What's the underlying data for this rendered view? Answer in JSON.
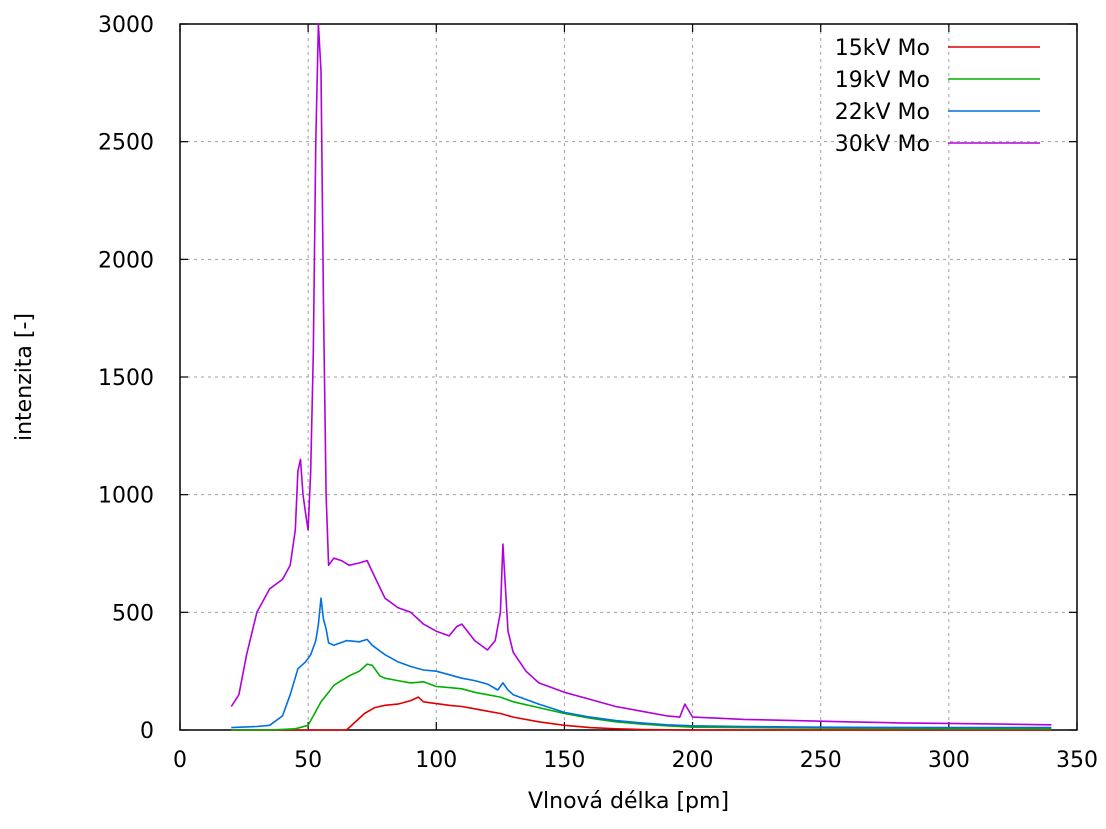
{
  "chart_data": {
    "type": "line",
    "title": "",
    "xlabel": "Vlnová délka [pm]",
    "ylabel": "intenzita [-]",
    "xlim": [
      0,
      350
    ],
    "ylim": [
      0,
      3000
    ],
    "xticks": [
      "0",
      "50",
      "100",
      "150",
      "200",
      "250",
      "300",
      "350"
    ],
    "yticks": [
      "0",
      "500",
      "1000",
      "1500",
      "2000",
      "2500",
      "3000"
    ],
    "grid": true,
    "legend_position": "top-right",
    "series": [
      {
        "name": "15kV Mo",
        "color": "#e00000",
        "x": [
          20,
          40,
          60,
          65,
          68,
          72,
          76,
          80,
          85,
          90,
          93,
          95,
          98,
          100,
          105,
          110,
          115,
          120,
          125,
          130,
          140,
          150,
          160,
          170,
          180,
          200,
          250,
          300,
          340
        ],
        "y": [
          0,
          0,
          0,
          0,
          30,
          70,
          95,
          105,
          110,
          125,
          140,
          120,
          115,
          112,
          105,
          100,
          90,
          80,
          70,
          55,
          35,
          20,
          10,
          5,
          2,
          0,
          0,
          0,
          0
        ]
      },
      {
        "name": "19kV Mo",
        "color": "#00b000",
        "x": [
          20,
          35,
          45,
          50,
          52,
          55,
          58,
          60,
          63,
          66,
          70,
          73,
          75,
          78,
          80,
          85,
          90,
          95,
          100,
          105,
          110,
          115,
          120,
          125,
          130,
          140,
          150,
          160,
          170,
          180,
          190,
          200,
          250,
          300,
          340
        ],
        "y": [
          0,
          0,
          5,
          20,
          60,
          120,
          160,
          190,
          210,
          230,
          250,
          280,
          275,
          230,
          220,
          210,
          200,
          205,
          185,
          180,
          175,
          160,
          150,
          140,
          120,
          95,
          70,
          50,
          35,
          25,
          18,
          12,
          8,
          5,
          5
        ]
      },
      {
        "name": "22kV Mo",
        "color": "#0070e0",
        "x": [
          20,
          30,
          35,
          40,
          43,
          46,
          49,
          51,
          53,
          54,
          55,
          56,
          57,
          58,
          60,
          65,
          70,
          73,
          75,
          80,
          85,
          90,
          95,
          100,
          105,
          110,
          115,
          120,
          124,
          126,
          128,
          130,
          140,
          150,
          160,
          170,
          180,
          190,
          200,
          220,
          250,
          300,
          340
        ],
        "y": [
          10,
          15,
          20,
          60,
          150,
          260,
          290,
          320,
          380,
          450,
          560,
          470,
          430,
          370,
          360,
          380,
          375,
          385,
          360,
          320,
          290,
          270,
          255,
          250,
          235,
          220,
          210,
          195,
          170,
          200,
          170,
          150,
          110,
          75,
          55,
          40,
          30,
          22,
          18,
          15,
          12,
          10,
          10
        ]
      },
      {
        "name": "30kV Mo",
        "color": "#b000e0",
        "x": [
          20,
          23,
          26,
          30,
          35,
          40,
          43,
          45,
          46,
          47,
          48,
          49,
          50,
          51,
          52,
          53,
          54,
          55,
          56,
          57,
          58,
          60,
          63,
          66,
          70,
          73,
          76,
          80,
          85,
          90,
          95,
          100,
          105,
          108,
          110,
          115,
          120,
          123,
          125,
          126,
          127,
          128,
          130,
          135,
          140,
          150,
          160,
          170,
          180,
          190,
          195,
          197,
          200,
          210,
          220,
          240,
          260,
          280,
          300,
          320,
          340
        ],
        "y": [
          100,
          150,
          320,
          500,
          600,
          640,
          700,
          850,
          1100,
          1150,
          1000,
          920,
          850,
          1100,
          1600,
          2500,
          3000,
          2800,
          1800,
          1000,
          700,
          730,
          720,
          700,
          710,
          720,
          650,
          560,
          520,
          500,
          450,
          420,
          400,
          440,
          450,
          380,
          340,
          380,
          500,
          790,
          600,
          420,
          330,
          250,
          200,
          160,
          130,
          100,
          80,
          60,
          55,
          110,
          55,
          50,
          45,
          40,
          35,
          30,
          28,
          25,
          22
        ]
      }
    ]
  }
}
